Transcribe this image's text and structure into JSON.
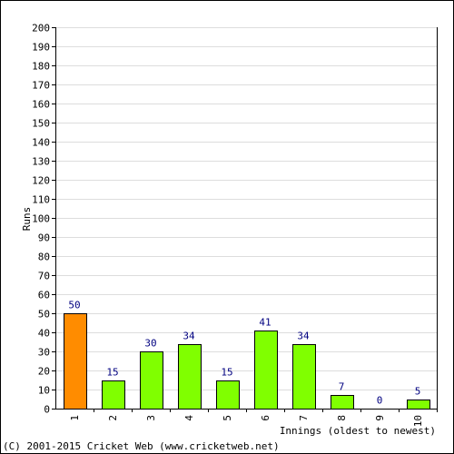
{
  "chart_data": {
    "type": "bar",
    "xlabel": "Innings (oldest to newest)",
    "ylabel": "Runs",
    "ylim": [
      0,
      200
    ],
    "ytick_step": 10,
    "grid": true,
    "categories": [
      "1",
      "2",
      "3",
      "4",
      "5",
      "6",
      "7",
      "8",
      "9",
      "10"
    ],
    "values": [
      50,
      15,
      30,
      34,
      15,
      41,
      34,
      7,
      0,
      5
    ],
    "data_labels": [
      "50",
      "15",
      "30",
      "34",
      "15",
      "41",
      "34",
      "7",
      "0",
      "5"
    ],
    "highlight_index": 0
  },
  "colors": {
    "bar": "#80ff00",
    "highlight_bar": "#ff8c00",
    "bar_stroke": "#000000",
    "grid": "#dddddd",
    "axis": "#000000",
    "value_label": "#000080",
    "frame": "#000000"
  },
  "footer": {
    "copyright": "(C) 2001-2015 Cricket Web (www.cricketweb.net)"
  }
}
